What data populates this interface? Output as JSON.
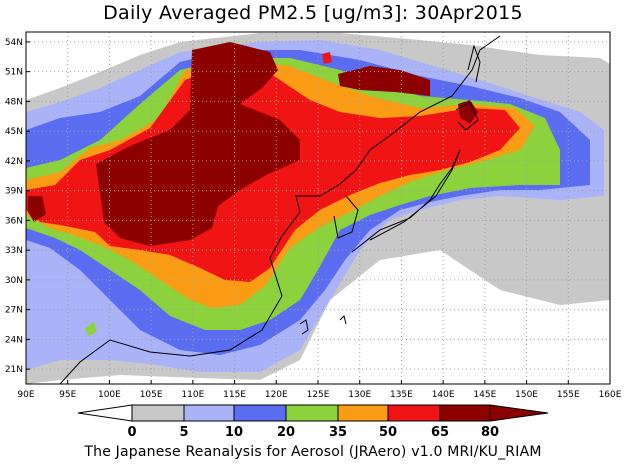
{
  "title": "Daily Averaged PM2.5 [ug/m3]: 30Apr2015",
  "footer": "The Japanese Reanalysis for Aerosol (JRAero) v1.0 MRI/KU_RIAM",
  "map": {
    "lon_range": [
      90,
      160
    ],
    "lat_range": [
      19.5,
      55
    ],
    "lon_ticks": [
      {
        "lon": 90,
        "label": "90E"
      },
      {
        "lon": 95,
        "label": "95E"
      },
      {
        "lon": 100,
        "label": "100E"
      },
      {
        "lon": 105,
        "label": "105E"
      },
      {
        "lon": 110,
        "label": "110E"
      },
      {
        "lon": 115,
        "label": "115E"
      },
      {
        "lon": 120,
        "label": "120E"
      },
      {
        "lon": 125,
        "label": "125E"
      },
      {
        "lon": 130,
        "label": "130E"
      },
      {
        "lon": 135,
        "label": "135E"
      },
      {
        "lon": 140,
        "label": "140E"
      },
      {
        "lon": 145,
        "label": "145E"
      },
      {
        "lon": 150,
        "label": "150E"
      },
      {
        "lon": 155,
        "label": "155E"
      },
      {
        "lon": 160,
        "label": "160E"
      }
    ],
    "lat_ticks": [
      {
        "lat": 21,
        "label": "21N"
      },
      {
        "lat": 24,
        "label": "24N"
      },
      {
        "lat": 27,
        "label": "27N"
      },
      {
        "lat": 30,
        "label": "30N"
      },
      {
        "lat": 33,
        "label": "33N"
      },
      {
        "lat": 36,
        "label": "36N"
      },
      {
        "lat": 39,
        "label": "39N"
      },
      {
        "lat": 42,
        "label": "42N"
      },
      {
        "lat": 45,
        "label": "45N"
      },
      {
        "lat": 48,
        "label": "48N"
      },
      {
        "lat": 51,
        "label": "51N"
      },
      {
        "lat": 54,
        "label": "54N"
      }
    ]
  },
  "legend": {
    "labels": [
      "0",
      "5",
      "10",
      "20",
      "35",
      "50",
      "65",
      "80"
    ],
    "colors": [
      "#ffffff",
      "#c8c8c8",
      "#aab2f8",
      "#5a6cf0",
      "#8cd23c",
      "#fa9b14",
      "#f01414",
      "#8c0000"
    ]
  },
  "colors": {
    "c5": "#c8c8c8",
    "c10": "#aab2f8",
    "c20": "#5a6cf0",
    "c35": "#8cd23c",
    "c50": "#fa9b14",
    "c65": "#f01414",
    "c80": "#8c0000",
    "grid": "#a0a0a0",
    "coast": "#000000"
  }
}
